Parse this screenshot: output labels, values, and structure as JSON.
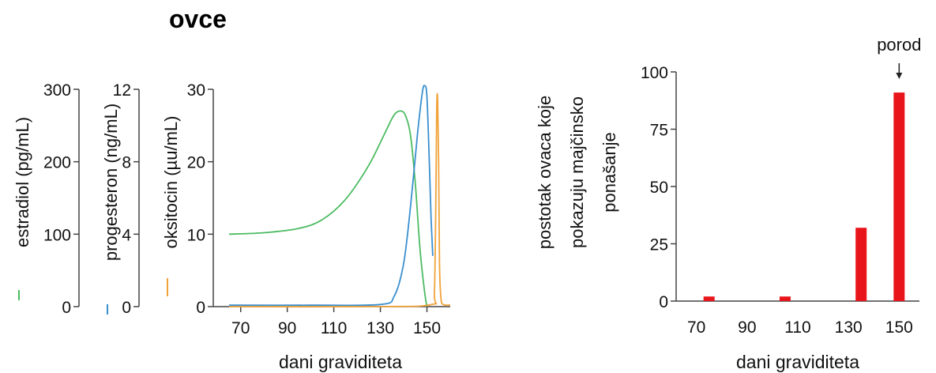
{
  "title": "ovce",
  "colors": {
    "estradiol": "#4cbb62",
    "progesterone": "#3a8fcf",
    "oxytocin": "#f0a33a",
    "bars": "#e8151b",
    "axis": "#444444"
  },
  "chart_data": [
    {
      "type": "line",
      "xlabel": "dani graviditeta",
      "xticks": [
        70,
        90,
        110,
        130,
        150
      ],
      "xlim": [
        65,
        160
      ],
      "axes": [
        {
          "key": "estradiol",
          "label": "estradiol (pg/mL)",
          "ticks": [
            "0",
            "100",
            "200",
            "300"
          ],
          "ylim": [
            0,
            300
          ]
        },
        {
          "key": "progesterone",
          "label": "progesteron (ng/mL)",
          "ticks": [
            "0",
            "4",
            "8",
            "12"
          ],
          "ylim": [
            0,
            12
          ]
        },
        {
          "key": "oxytocin",
          "label": "oksitocin (µu/mL)",
          "ticks": [
            "0",
            "10",
            "20",
            "30"
          ],
          "ylim": [
            0,
            30
          ]
        }
      ],
      "series": [
        {
          "key": "estradiol",
          "axis": "oxytocin",
          "x": [
            65,
            80,
            95,
            105,
            115,
            125,
            132,
            136,
            139,
            141,
            143,
            145,
            147,
            149,
            150
          ],
          "y": [
            10,
            10.2,
            10.8,
            12,
            14.8,
            19.5,
            24,
            26.5,
            27,
            26.2,
            23.5,
            17,
            8,
            2,
            0
          ]
        },
        {
          "key": "progesterone",
          "axis": "oxytocin",
          "x": [
            65,
            100,
            130,
            136,
            140,
            143,
            146,
            148,
            149,
            150,
            151,
            151.8,
            152.5
          ],
          "y": [
            0.2,
            0.2,
            0.3,
            1.5,
            6,
            14,
            24,
            29.5,
            30.5,
            29,
            20,
            12,
            7
          ]
        },
        {
          "key": "oxytocin",
          "axis": "oxytocin",
          "x": [
            65,
            130,
            152,
            153.2,
            153.8,
            154.2,
            154.6,
            155,
            155.4,
            156,
            157,
            160
          ],
          "y": [
            0,
            0,
            0.3,
            2,
            14,
            27.5,
            28.5,
            20,
            6,
            1.2,
            0.3,
            0.2
          ]
        }
      ]
    },
    {
      "type": "bar",
      "ylabel_lines": [
        "postotak ovaca koje",
        "pokazuju majčinsko",
        "ponašanje"
      ],
      "xlabel": "dani graviditeta",
      "xticks": [
        70,
        90,
        110,
        130,
        150
      ],
      "yticks": [
        0,
        25,
        50,
        75,
        100
      ],
      "xlim": [
        62,
        158
      ],
      "ylim": [
        0,
        100
      ],
      "x": [
        75,
        105,
        135,
        150
      ],
      "values": [
        2,
        2,
        32,
        91
      ],
      "annotation": {
        "text": "porod",
        "x": 150
      }
    }
  ]
}
